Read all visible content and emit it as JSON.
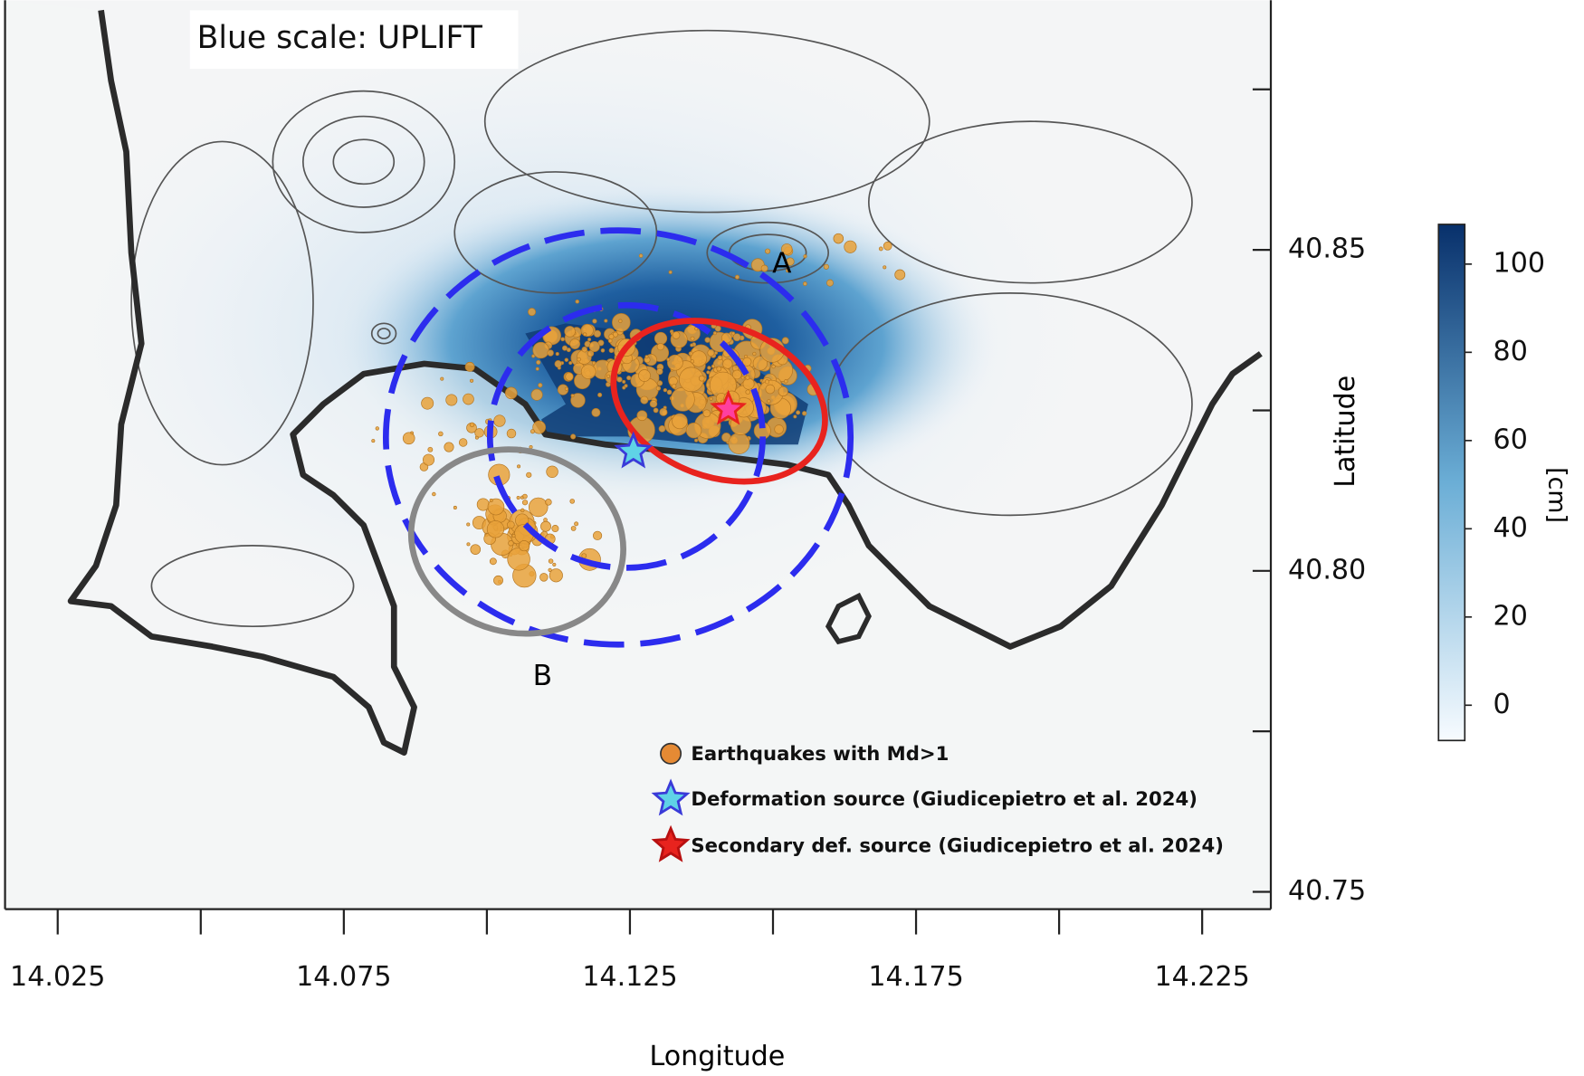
{
  "map": {
    "title": "Blue scale: UPLIFT",
    "zone_labels": [
      "A",
      "B"
    ],
    "legend": [
      "Earthquakes with Md>1",
      "Deformation source (Giudicepietro et al. 2024)",
      "Secondary def. source (Giudicepietro et al. 2024)"
    ],
    "x_axis": {
      "label": "Longitude",
      "lim": [
        14.0158,
        14.237
      ],
      "ticks": [
        14.025,
        14.05,
        14.075,
        14.1,
        14.125,
        14.15,
        14.175,
        14.2,
        14.225
      ],
      "tick_labels": [
        14.025,
        null,
        14.075,
        null,
        14.125,
        null,
        14.175,
        null,
        14.225
      ]
    },
    "y_axis": {
      "label": "Latitude",
      "lim": [
        40.7473,
        40.8889
      ],
      "ticks": [
        40.75,
        40.775,
        40.8,
        40.825,
        40.85,
        40.875
      ],
      "tick_labels": [
        40.75,
        null,
        {
          "value": 40.8,
          "label": "40.80"
        },
        null,
        40.85,
        null
      ]
    },
    "colorbar": {
      "label": "[cm]",
      "lim": [
        -8,
        109
      ],
      "ticks": [
        0,
        20,
        40,
        60,
        80,
        100
      ],
      "colors": [
        "#f7fbff",
        "#6baed6",
        "#08306b"
      ]
    }
  }
}
